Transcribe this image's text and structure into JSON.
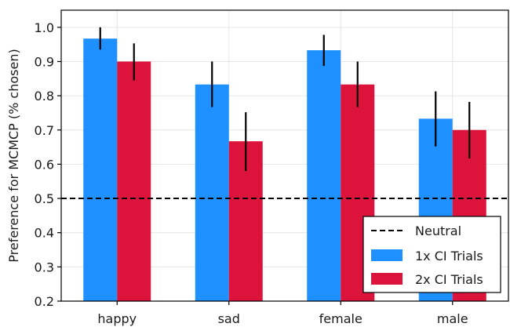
{
  "chart_data": {
    "type": "bar",
    "title": "",
    "xlabel": "",
    "ylabel": "Preference for MCMCP (% chosen)",
    "categories": [
      "happy",
      "sad",
      "female",
      "male"
    ],
    "ylim": [
      0.2,
      1.05
    ],
    "yticks": [
      "0.2",
      "0.3",
      "0.4",
      "0.5",
      "0.6",
      "0.7",
      "0.8",
      "0.9",
      "1.0"
    ],
    "grid": true,
    "legend_position": "lower-right",
    "series": [
      {
        "name": "1x CI Trials",
        "color": "#1e90ff",
        "values": [
          0.967,
          0.833,
          0.933,
          0.733
        ],
        "err_low": [
          0.935,
          0.767,
          0.887,
          0.652
        ],
        "err_high": [
          1.0,
          0.9,
          0.978,
          0.813
        ]
      },
      {
        "name": "2x CI Trials",
        "color": "#dc143c",
        "values": [
          0.9,
          0.667,
          0.833,
          0.7
        ],
        "err_low": [
          0.845,
          0.58,
          0.767,
          0.617
        ],
        "err_high": [
          0.953,
          0.752,
          0.9,
          0.782
        ]
      }
    ],
    "reference_line": {
      "name": "Neutral",
      "value": 0.5,
      "style": "dashed",
      "color": "#000000"
    }
  }
}
